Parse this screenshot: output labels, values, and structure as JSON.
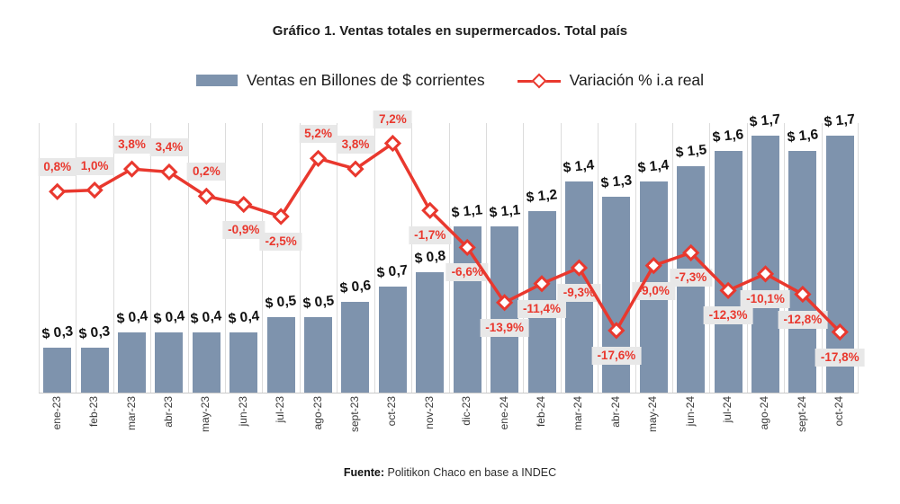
{
  "title": "Gráfico 1. Ventas totales en supermercados. Total país",
  "legend": {
    "bars_label": "Ventas en Billones de $ corrientes",
    "line_label": "Variación % i.a real"
  },
  "source": {
    "prefix": "Fuente:",
    "text": " Politikon Chaco en base a INDEC"
  },
  "colors": {
    "bar": "#7e93ad",
    "line": "#e9382e",
    "label_bg": "#e8e8e8",
    "grid": "#dcdcdc",
    "axis": "#c9c9c9"
  },
  "chart_data": {
    "type": "combo",
    "title": "Gráfico 1. Ventas totales en supermercados. Total país",
    "categories": [
      "ene-23",
      "feb-23",
      "mar-23",
      "abr-23",
      "may-23",
      "jun-23",
      "jul-23",
      "ago-23",
      "sept-23",
      "oct-23",
      "nov-23",
      "dic-23",
      "ene-24",
      "feb-24",
      "mar-24",
      "abr-24",
      "may-24",
      "jun-24",
      "jul-24",
      "ago-24",
      "sept-24",
      "oct-24"
    ],
    "series": [
      {
        "name": "Ventas en Billones de $ corrientes",
        "type": "bar",
        "values": [
          0.3,
          0.3,
          0.4,
          0.4,
          0.4,
          0.4,
          0.5,
          0.5,
          0.6,
          0.7,
          0.8,
          1.1,
          1.1,
          1.2,
          1.4,
          1.3,
          1.4,
          1.5,
          1.6,
          1.7,
          1.6,
          1.7
        ],
        "labels": [
          "$ 0,3",
          "$ 0,3",
          "$ 0,4",
          "$ 0,4",
          "$ 0,4",
          "$ 0,4",
          "$ 0,5",
          "$ 0,5",
          "$ 0,6",
          "$ 0,7",
          "$ 0,8",
          "$ 1,1",
          "$ 1,1",
          "$ 1,2",
          "$ 1,4",
          "$ 1,3",
          "$ 1,4",
          "$ 1,5",
          "$ 1,6",
          "$ 1,7",
          "$ 1,6",
          "$ 1,7"
        ]
      },
      {
        "name": "Variación % i.a real",
        "type": "line",
        "values": [
          0.8,
          1.0,
          3.8,
          3.4,
          0.2,
          -0.9,
          -2.5,
          5.2,
          3.8,
          7.2,
          -1.7,
          -6.6,
          -13.9,
          -11.4,
          -9.3,
          -17.6,
          -9.0,
          -7.3,
          -12.3,
          -10.1,
          -12.8,
          -17.8
        ],
        "labels": [
          "0,8%",
          "1,0%",
          "3,8%",
          "3,4%",
          "0,2%",
          "-0,9%",
          "-2,5%",
          "5,2%",
          "3,8%",
          "7,2%",
          "-1,7%",
          "-6,6%",
          "-13,9%",
          "-11,4%",
          "-9,3%",
          "-17,6%",
          "-9,0%",
          "-7,3%",
          "-12,3%",
          "-10,1%",
          "-12,8%",
          "-17,8%"
        ]
      }
    ],
    "bar_axis_range": [
      0,
      1.8
    ],
    "line_axis_range": [
      -20,
      9
    ],
    "grid": "vertical",
    "legend_position": "top"
  }
}
